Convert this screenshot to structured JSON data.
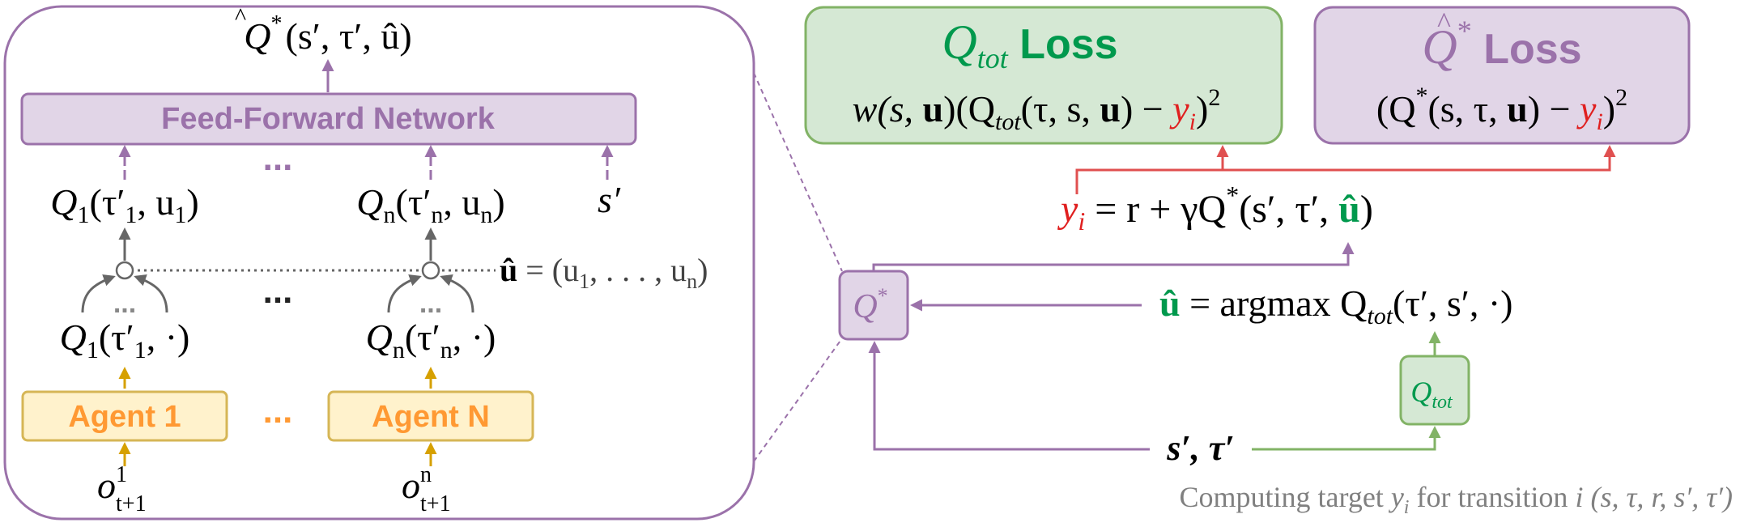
{
  "colors": {
    "purple": "#9b72aa",
    "purple_fill": "#e1d5e7",
    "green": "#82b366",
    "green_fill": "#d5e8d4",
    "green_text": "#00994d",
    "orange": "#d6b656",
    "orange_fill": "#fff2cc",
    "orange_text": "#ff9933",
    "red": "#e05050",
    "gray_arrow": "#666666",
    "caption_gray": "#808080"
  },
  "left_panel": {
    "output_label": {
      "q": "Q",
      "star": "*",
      "args": "(s′, τ′, û)"
    },
    "ffn_label": "Feed-Forward Network",
    "ellipsis": "...",
    "q1_top": {
      "q": "Q",
      "sub": "1",
      "args": "(τ′",
      "tsub": "1",
      "rest": ", u",
      "usub": "1",
      "close": ")"
    },
    "qn_top": {
      "q": "Q",
      "sub": "n",
      "args": "(τ′",
      "tsub": "n",
      "rest": ", u",
      "usub": "n",
      "close": ")"
    },
    "s_prime": "s′",
    "u_hat_def": {
      "u": "û",
      "eq": " = (u",
      "s1": "1",
      "mid": ", . . . , u",
      "sn": "n",
      "close": ")"
    },
    "q1_bottom": {
      "q": "Q",
      "sub": "1",
      "args": "(τ′",
      "tsub": "1",
      "rest": ", ·)"
    },
    "qn_bottom": {
      "q": "Q",
      "sub": "n",
      "args": "(τ′",
      "tsub": "n",
      "rest": ", ·)"
    },
    "agent1": "Agent 1",
    "agentN": "Agent N",
    "obs1": {
      "o": "o",
      "sup": "1",
      "sub": "t+1"
    },
    "obsn": {
      "o": "o",
      "sup": "n",
      "sub": "t+1"
    }
  },
  "right_panel": {
    "qtot_loss_title": {
      "q": "Q",
      "sub": "tot",
      "word": " Loss"
    },
    "qtot_loss_formula": {
      "pre": "w(s, ",
      "u": "u",
      "mid": ")(Q",
      "sub": "tot",
      "args": "(τ, s, ",
      "u2": "u",
      "close": ") − ",
      "y": "y",
      "ysub": "i",
      "end": ")",
      "sup": "2"
    },
    "qstar_loss_title": {
      "q": "Q",
      "star": "*",
      "word": " Loss"
    },
    "qstar_loss_formula": {
      "pre": "(Q",
      "star": "*",
      "args": "(s, τ, ",
      "u": "u",
      "close": ") − ",
      "y": "y",
      "ysub": "i",
      "end": ")",
      "sup": "2"
    },
    "target_eq": {
      "y": "y",
      "ysub": "i",
      "eq": " = r + γQ",
      "star": "*",
      "args": "(s′, τ′, ",
      "u": "û",
      "close": ")"
    },
    "qstar_node": {
      "q": "Q",
      "star": "*"
    },
    "argmax_eq": {
      "u": "û",
      "eq": " = argmax Q",
      "sub": "tot",
      "args": "(τ′, s′, ·)"
    },
    "qtot_node": {
      "q": "Q",
      "sub": "tot"
    },
    "s_tau": "s′, τ′",
    "caption": {
      "pre": "Computing target ",
      "y": "y",
      "ysub": "i",
      "mid": " for transition ",
      "i": "i",
      "tuple": " (s, τ, r, s′, τ′)"
    }
  }
}
